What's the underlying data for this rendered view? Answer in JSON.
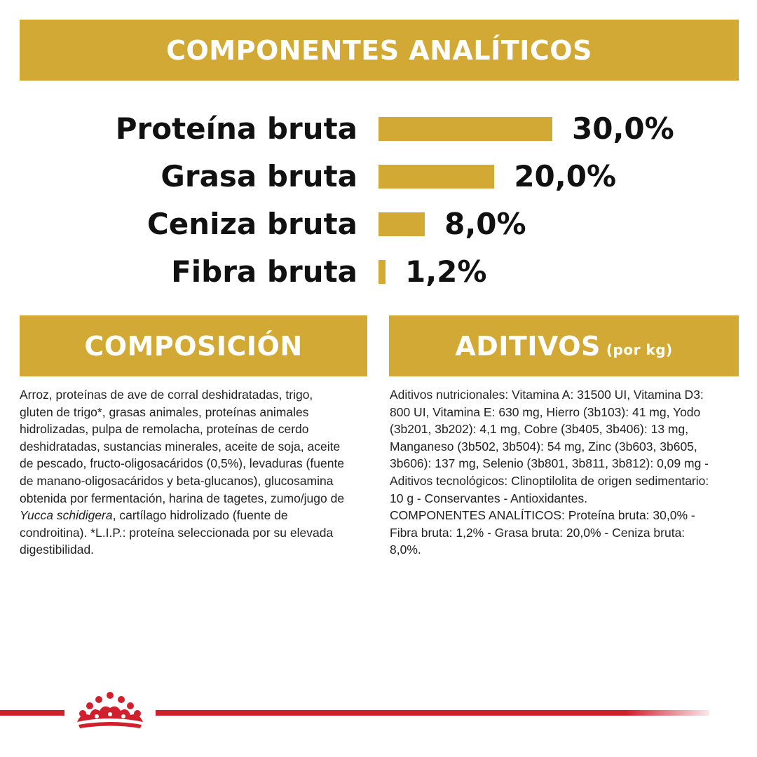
{
  "header": {
    "title": "COMPONENTES ANALÍTICOS"
  },
  "nutrients": [
    {
      "label": "Proteína bruta",
      "value": "30,0%",
      "percent": 30.0
    },
    {
      "label": "Grasa bruta",
      "value": "20,0%",
      "percent": 20.0
    },
    {
      "label": "Ceniza bruta",
      "value": "8,0%",
      "percent": 8.0
    },
    {
      "label": "Fibra bruta",
      "value": "1,2%",
      "percent": 1.2
    }
  ],
  "composition": {
    "title": "COMPOSICIÓN",
    "text_before_italic": "Arroz, proteínas de ave de corral deshidratadas, trigo, gluten de trigo*, grasas animales, proteínas animales hidrolizadas, pulpa de remolacha, proteínas de cerdo deshidratadas, sustancias minerales, aceite de soja, aceite de pescado, fructo-oligosacáridos (0,5%), levaduras (fuente de manano-oligosacáridos y beta-glucanos), glucosamina obtenida por fermentación, harina de tagetes, zumo/jugo de ",
    "italic": "Yucca schidigera",
    "text_after_italic": ", cartílago hidrolizado (fuente de condroitina). *L.I.P.: proteína seleccionada por su elevada digestibilidad."
  },
  "additives": {
    "title": "ADITIVOS",
    "subtitle": "(por kg)",
    "text": "Aditivos nutricionales: Vitamina A: 31500 UI, Vitamina D3: 800 UI, Vitamina E: 630 mg, Hierro (3b103): 41 mg, Yodo (3b201, 3b202): 4,1 mg, Cobre (3b405, 3b406): 13 mg, Manganeso (3b502, 3b504): 54 mg, Zinc (3b603, 3b605, 3b606): 137 mg, Selenio (3b801, 3b811, 3b812): 0,09 mg - Aditivos tecnológicos: Clinoptilolita de origen sedimentario: 10 g - Conservantes - Antioxidantes.",
    "text2": "COMPONENTES ANALÍTICOS: Proteína bruta: 30,0% - Fibra bruta: 1,2% - Grasa bruta: 20,0% - Ceniza bruta: 8,0%."
  },
  "colors": {
    "gold": "#d2a935",
    "red": "#d0202e"
  },
  "footer": {
    "logo": "crown-icon"
  }
}
